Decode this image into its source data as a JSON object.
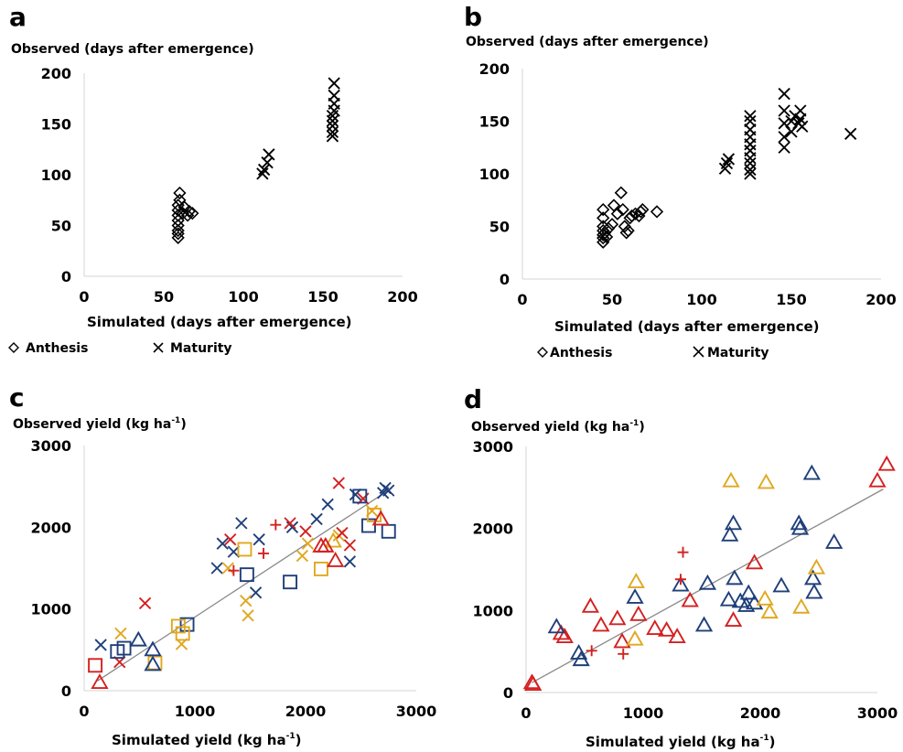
{
  "chart_data": [
    {
      "panel": "a",
      "type": "scatter",
      "ylabel": "Observed (days after emergence)",
      "xlabel": "Simulated  (days after emergence)",
      "xlim": [
        0,
        200
      ],
      "ylim": [
        0,
        200
      ],
      "xticks": [
        0,
        50,
        100,
        150,
        200
      ],
      "yticks": [
        0,
        50,
        100,
        150,
        200
      ],
      "legend": [
        "Anthesis",
        "Maturity"
      ],
      "series": [
        {
          "name": "Anthesis",
          "marker": "diamond",
          "color": "#000000",
          "points": [
            [
              59,
              38
            ],
            [
              59,
              42
            ],
            [
              59,
              45
            ],
            [
              59,
              50
            ],
            [
              59,
              55
            ],
            [
              59,
              60
            ],
            [
              59,
              65
            ],
            [
              59,
              70
            ],
            [
              60,
              75
            ],
            [
              60,
              82
            ],
            [
              62,
              62
            ],
            [
              63,
              68
            ],
            [
              65,
              60
            ],
            [
              66,
              64
            ],
            [
              68,
              62
            ]
          ]
        },
        {
          "name": "Maturity",
          "marker": "x",
          "color": "#000000",
          "points": [
            [
              112,
              101
            ],
            [
              113,
              105
            ],
            [
              115,
              112
            ],
            [
              116,
              120
            ],
            [
              156,
              138
            ],
            [
              156,
              142
            ],
            [
              156,
              148
            ],
            [
              156,
              153
            ],
            [
              156,
              158
            ],
            [
              157,
              163
            ],
            [
              157,
              170
            ],
            [
              157,
              178
            ],
            [
              157,
              190
            ]
          ]
        }
      ]
    },
    {
      "panel": "b",
      "type": "scatter",
      "ylabel": "Observed (days after emergence)",
      "xlabel": "Simulated  (days after emergence)",
      "xlim": [
        0,
        200
      ],
      "ylim": [
        0,
        200
      ],
      "xticks": [
        0,
        50,
        100,
        150,
        200
      ],
      "yticks": [
        0,
        50,
        100,
        150,
        200
      ],
      "legend": [
        "Anthesis",
        "Maturity"
      ],
      "series": [
        {
          "name": "Anthesis",
          "marker": "diamond",
          "color": "#000000",
          "points": [
            [
              45,
              35
            ],
            [
              45,
              39
            ],
            [
              45,
              42
            ],
            [
              45,
              46
            ],
            [
              45,
              50
            ],
            [
              45,
              58
            ],
            [
              45,
              66
            ],
            [
              46,
              44
            ],
            [
              47,
              40
            ],
            [
              48,
              48
            ],
            [
              50,
              52
            ],
            [
              51,
              70
            ],
            [
              53,
              62
            ],
            [
              55,
              82
            ],
            [
              56,
              66
            ],
            [
              57,
              50
            ],
            [
              58,
              44
            ],
            [
              59,
              46
            ],
            [
              60,
              58
            ],
            [
              61,
              60
            ],
            [
              63,
              62
            ],
            [
              65,
              60
            ],
            [
              66,
              64
            ],
            [
              67,
              66
            ],
            [
              75,
              64
            ]
          ]
        },
        {
          "name": "Maturity",
          "marker": "x",
          "color": "#000000",
          "points": [
            [
              113,
              105
            ],
            [
              114,
              110
            ],
            [
              115,
              114
            ],
            [
              127,
              100
            ],
            [
              127,
              104
            ],
            [
              127,
              110
            ],
            [
              127,
              115
            ],
            [
              127,
              122
            ],
            [
              127,
              128
            ],
            [
              127,
              135
            ],
            [
              127,
              142
            ],
            [
              127,
              150
            ],
            [
              127,
              155
            ],
            [
              146,
              125
            ],
            [
              146,
              135
            ],
            [
              146,
              148
            ],
            [
              146,
              160
            ],
            [
              146,
              176
            ],
            [
              150,
              140
            ],
            [
              150,
              150
            ],
            [
              152,
              155
            ],
            [
              154,
              148
            ],
            [
              155,
              160
            ],
            [
              155,
              152
            ],
            [
              156,
              145
            ],
            [
              183,
              138
            ]
          ]
        }
      ]
    },
    {
      "panel": "c",
      "type": "scatter",
      "ylabel": "Observed  yield (kg ha-1)",
      "xlabel": "Simulated  yield (kg ha-1)",
      "xlim": [
        0,
        3000
      ],
      "ylim": [
        0,
        3000
      ],
      "xticks": [
        0,
        1000,
        2000,
        3000
      ],
      "yticks": [
        0,
        1000,
        2000,
        3000
      ],
      "fit_line": [
        [
          120,
          120
        ],
        [
          2780,
          2480
        ]
      ],
      "series": [
        {
          "name": "",
          "marker": "x",
          "color": "#1f3f7a",
          "points": [
            [
              150,
              560
            ],
            [
              1200,
              1500
            ],
            [
              1250,
              1800
            ],
            [
              1350,
              1700
            ],
            [
              1420,
              2050
            ],
            [
              1550,
              1200
            ],
            [
              1580,
              1850
            ],
            [
              1880,
              2000
            ],
            [
              2100,
              2100
            ],
            [
              2200,
              2280
            ],
            [
              2400,
              1580
            ],
            [
              2450,
              2400
            ],
            [
              2700,
              2420
            ],
            [
              2720,
              2480
            ],
            [
              2750,
              2450
            ]
          ]
        },
        {
          "name": "",
          "marker": "x",
          "color": "#e0a820",
          "points": [
            [
              330,
              700
            ],
            [
              880,
              570
            ],
            [
              1300,
              1500
            ],
            [
              1460,
              1100
            ],
            [
              1480,
              920
            ],
            [
              1970,
              1650
            ],
            [
              2020,
              1800
            ],
            [
              2300,
              1900
            ],
            [
              2600,
              2200
            ]
          ]
        },
        {
          "name": "",
          "marker": "x",
          "color": "#d42020",
          "points": [
            [
              320,
              350
            ],
            [
              550,
              1070
            ],
            [
              1320,
              1850
            ],
            [
              1860,
              2050
            ],
            [
              2000,
              1950
            ],
            [
              2300,
              2540
            ],
            [
              2330,
              1930
            ],
            [
              2400,
              1780
            ],
            [
              2520,
              2350
            ]
          ]
        },
        {
          "name": "",
          "marker": "plus",
          "color": "#d42020",
          "points": [
            [
              1350,
              1470
            ],
            [
              1620,
              1680
            ],
            [
              1730,
              2030
            ]
          ]
        },
        {
          "name": "",
          "marker": "square",
          "color": "#1f3f7a",
          "points": [
            [
              300,
              480
            ],
            [
              360,
              520
            ],
            [
              930,
              810
            ],
            [
              1470,
              1420
            ],
            [
              1860,
              1330
            ],
            [
              2490,
              2380
            ],
            [
              2570,
              2020
            ],
            [
              2750,
              1950
            ]
          ]
        },
        {
          "name": "",
          "marker": "square",
          "color": "#e0a820",
          "points": [
            [
              640,
              340
            ],
            [
              850,
              790
            ],
            [
              890,
              700
            ],
            [
              1450,
              1730
            ],
            [
              2140,
              1490
            ],
            [
              2620,
              2150
            ]
          ]
        },
        {
          "name": "",
          "marker": "square",
          "color": "#d42020",
          "points": [
            [
              100,
              310
            ]
          ]
        },
        {
          "name": "",
          "marker": "triangle",
          "color": "#1f3f7a",
          "points": [
            [
              490,
              620
            ],
            [
              620,
              320
            ],
            [
              620,
              500
            ]
          ]
        },
        {
          "name": "",
          "marker": "triangle",
          "color": "#e0a820",
          "points": [
            [
              2250,
              1830
            ]
          ]
        },
        {
          "name": "",
          "marker": "triangle",
          "color": "#d42020",
          "points": [
            [
              140,
              100
            ],
            [
              2140,
              1770
            ],
            [
              2180,
              1770
            ],
            [
              2270,
              1590
            ],
            [
              2680,
              2100
            ]
          ]
        }
      ]
    },
    {
      "panel": "d",
      "type": "scatter",
      "ylabel": "Observed  yield (kg ha-1)",
      "xlabel": "Simulated  yield (kg ha-1)",
      "xlim": [
        0,
        3000
      ],
      "ylim": [
        0,
        3000
      ],
      "xticks": [
        0,
        1000,
        2000,
        3000
      ],
      "yticks": [
        0,
        1000,
        2000,
        3000
      ],
      "fit_line": [
        [
          50,
          120
        ],
        [
          3050,
          2480
        ]
      ],
      "series": [
        {
          "name": "",
          "marker": "triangle",
          "color": "#d42020",
          "points": [
            [
              50,
              120
            ],
            [
              60,
              100
            ],
            [
              300,
              720
            ],
            [
              330,
              680
            ],
            [
              550,
              1050
            ],
            [
              640,
              820
            ],
            [
              780,
              900
            ],
            [
              820,
              620
            ],
            [
              960,
              950
            ],
            [
              1100,
              780
            ],
            [
              1200,
              760
            ],
            [
              1290,
              680
            ],
            [
              1400,
              1120
            ],
            [
              1770,
              880
            ],
            [
              1950,
              1580
            ],
            [
              3000,
              2580
            ],
            [
              3080,
              2780
            ]
          ]
        },
        {
          "name": "",
          "marker": "triangle",
          "color": "#1f3f7a",
          "points": [
            [
              260,
              800
            ],
            [
              450,
              480
            ],
            [
              470,
              400
            ],
            [
              930,
              1160
            ],
            [
              1320,
              1310
            ],
            [
              1520,
              820
            ],
            [
              1550,
              1330
            ],
            [
              1730,
              1130
            ],
            [
              1740,
              1920
            ],
            [
              1770,
              2060
            ],
            [
              1780,
              1390
            ],
            [
              1830,
              1110
            ],
            [
              1880,
              1060
            ],
            [
              1900,
              1210
            ],
            [
              1950,
              1090
            ],
            [
              2180,
              1300
            ],
            [
              2330,
              2060
            ],
            [
              2340,
              2000
            ],
            [
              2440,
              2670
            ],
            [
              2450,
              1390
            ],
            [
              2460,
              1220
            ],
            [
              2630,
              1830
            ]
          ]
        },
        {
          "name": "",
          "marker": "triangle",
          "color": "#e0a820",
          "points": [
            [
              930,
              650
            ],
            [
              940,
              1350
            ],
            [
              1750,
              2580
            ],
            [
              2040,
              1140
            ],
            [
              2050,
              2560
            ],
            [
              2080,
              980
            ],
            [
              2350,
              1040
            ],
            [
              2480,
              1520
            ]
          ]
        },
        {
          "name": "",
          "marker": "plus",
          "color": "#d42020",
          "points": [
            [
              560,
              510
            ],
            [
              830,
              470
            ],
            [
              1320,
              1380
            ],
            [
              1340,
              1710
            ]
          ]
        }
      ]
    }
  ],
  "panels": {
    "a": {
      "label": "a",
      "ylabel": "Observed (days after emergence)",
      "xlabel": "Simulated  (days after emergence)",
      "legend": [
        "Anthesis",
        "Maturity"
      ]
    },
    "b": {
      "label": "b",
      "ylabel": "Observed (days after emergence)",
      "xlabel": "Simulated  (days after emergence)",
      "legend": [
        "Anthesis",
        "Maturity"
      ]
    },
    "c": {
      "label": "c",
      "ylabel_main": "Observed  yield (kg ha",
      "xlabel_main": "Simulated  yield (kg ha"
    },
    "d": {
      "label": "d",
      "ylabel_main": "Observed  yield (kg ha",
      "xlabel_main": "Simulated  yield (kg ha"
    }
  },
  "unit_sup": "-1",
  "unit_close": ")"
}
